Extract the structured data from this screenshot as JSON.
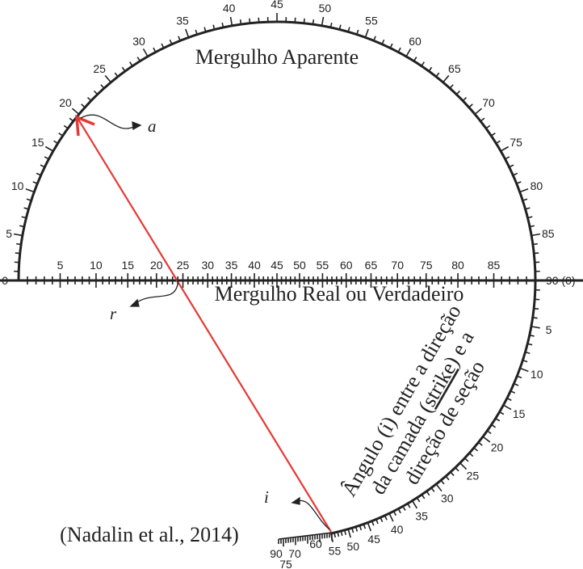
{
  "apparent_dip": {
    "title": "Mergulho Aparente",
    "ticks": [
      0,
      5,
      10,
      15,
      20,
      25,
      30,
      35,
      40,
      45,
      50,
      55,
      60,
      65,
      70,
      75,
      80,
      85,
      {
        "value": 90,
        "label": "90 (0)"
      }
    ]
  },
  "true_dip": {
    "title": "Mergulho Real ou Verdadeiro",
    "ticks": [
      5,
      10,
      15,
      20,
      25,
      30,
      35,
      40,
      45,
      50,
      55,
      60,
      65,
      70,
      75,
      80,
      85
    ]
  },
  "strike_angle": {
    "line1": "Ângulo (i) entre a direção",
    "line2_before": "da camada (",
    "line2_underlined": "strike",
    "line2_after": ") e a",
    "line3": "direção de seção",
    "ticks": [
      5,
      10,
      15,
      20,
      25,
      30,
      35,
      40,
      45,
      50,
      55
    ],
    "tail_ticks": [
      60,
      70,
      90,
      75
    ]
  },
  "annotations": {
    "a": "a",
    "r": "r",
    "i": "i"
  },
  "citation": "(Nadalin et al., 2014)"
}
